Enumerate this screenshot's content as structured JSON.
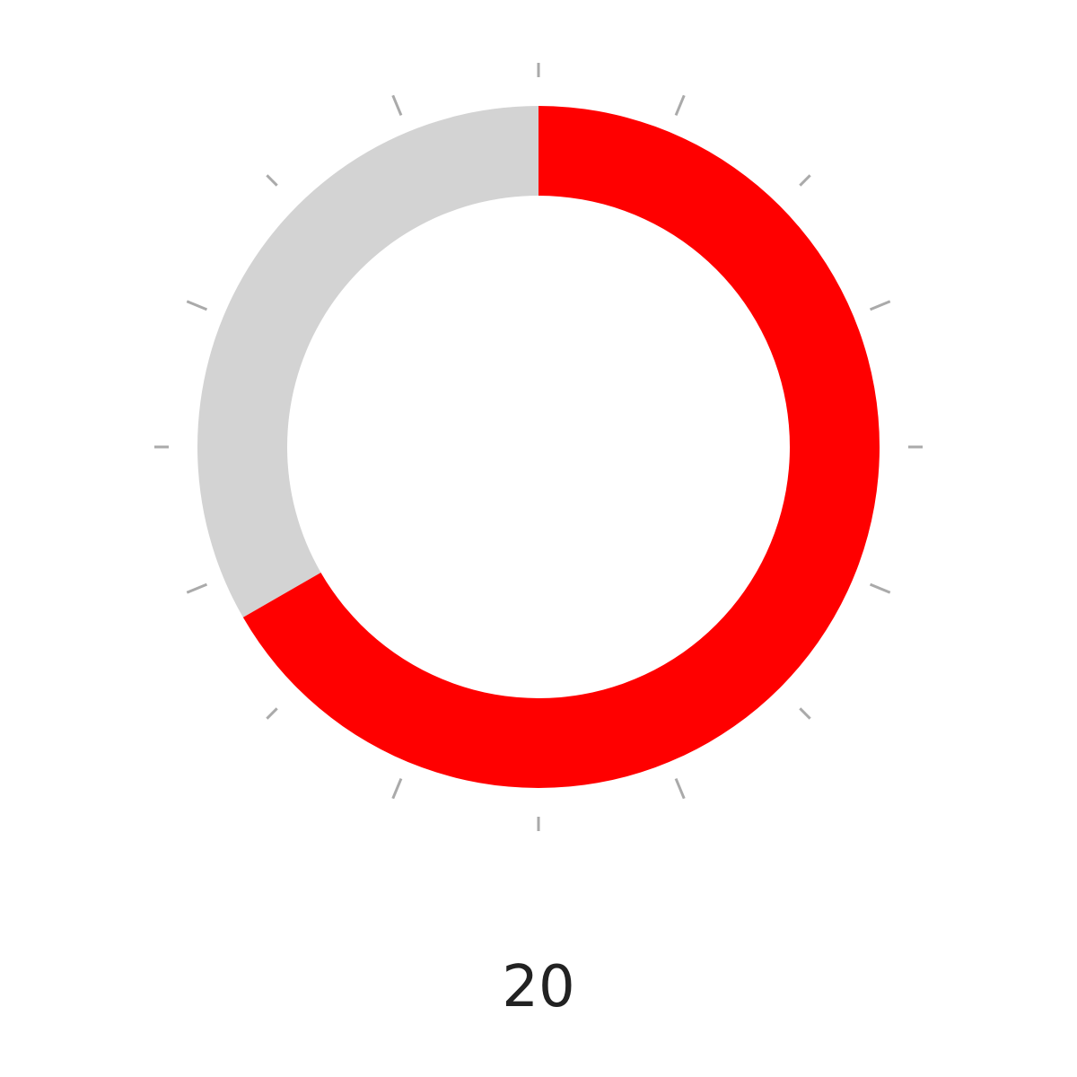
{
  "timer": {
    "value_text": "20",
    "progress_fraction": 0.6667,
    "tick_count": 16,
    "colors": {
      "progress": "#ff0000",
      "track": "#d3d3d3",
      "tick": "#aaaaaa",
      "text": "#222222",
      "background": "#ffffff"
    }
  }
}
